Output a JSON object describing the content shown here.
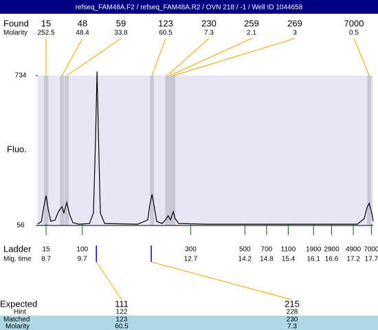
{
  "chart_data": {
    "type": "electropherogram",
    "title": "refseq_FAM48A.F2 / refseq_FAM48A.R2 / OVN 218 / -1 / Well ID 1044658",
    "found_label": "Found",
    "molarity_label": "Molarity",
    "found": [
      {
        "size": 15,
        "molarity": 252.5,
        "time": 8.7
      },
      {
        "size": 48,
        "molarity": 48.4,
        "time": 9.14
      },
      {
        "size": 59,
        "molarity": 33.8,
        "time": 9.27
      },
      {
        "size": 123,
        "molarity": 60.5,
        "time": 11.63
      },
      {
        "size": 230,
        "molarity": 7.3,
        "time": 12.05
      },
      {
        "size": 259,
        "molarity": 2.1,
        "time": 12.12
      },
      {
        "size": 269,
        "molarity": 3,
        "time": 12.22
      },
      {
        "size": 7000,
        "molarity": 0.5,
        "time": 17.64
      }
    ],
    "ylabel": "Fluo.",
    "ylim": [
      56,
      734
    ],
    "yticks": [
      56,
      734
    ],
    "xlim": [
      8.47,
      17.75
    ],
    "color": "#000000",
    "x": [
      8.47,
      8.57,
      8.64,
      8.7,
      8.76,
      8.83,
      8.95,
      9.04,
      9.14,
      9.19,
      9.27,
      9.35,
      9.44,
      9.61,
      9.9,
      10.01,
      10.07,
      10.11,
      10.15,
      10.2,
      10.32,
      11.23,
      11.51,
      11.57,
      11.63,
      11.69,
      11.76,
      11.91,
      12.03,
      12.08,
      12.14,
      12.22,
      12.27,
      12.37,
      13.13,
      17.31,
      17.5,
      17.58,
      17.64,
      17.71,
      17.75
    ],
    "values": [
      62,
      75,
      144,
      191,
      128,
      75,
      81,
      119,
      141,
      113,
      160,
      106,
      69,
      62,
      65,
      113,
      458,
      753,
      458,
      113,
      65,
      62,
      81,
      150,
      197,
      144,
      75,
      65,
      87,
      100,
      81,
      119,
      87,
      65,
      62,
      62,
      87,
      138,
      156,
      113,
      75
    ],
    "ladder_label": "Ladder",
    "mig_time_label": "Mig. time",
    "ladder": [
      {
        "size": 15,
        "time": 8.7
      },
      {
        "size": 100,
        "time": 9.7
      },
      {
        "size": 300,
        "time": 12.7
      },
      {
        "size": 500,
        "time": 14.2
      },
      {
        "size": 700,
        "time": 14.8
      },
      {
        "size": 1100,
        "time": 15.4
      },
      {
        "size": 1900,
        "time": 16.1
      },
      {
        "size": 2900,
        "time": 16.6
      },
      {
        "size": 4900,
        "time": 17.2
      },
      {
        "size": 7000,
        "time": 17.7
      }
    ],
    "expected_label": "Expected",
    "hint_label": "Hint",
    "matched_label": "Matched",
    "expected_molarity_label": "Molarity",
    "expected": [
      {
        "size": 111,
        "time": 10.09,
        "hint": 122,
        "matched": 123,
        "molarity": 60.5
      },
      {
        "size": 215,
        "time": 11.61,
        "hint": 228,
        "matched": 230,
        "molarity": 7.3
      }
    ]
  }
}
